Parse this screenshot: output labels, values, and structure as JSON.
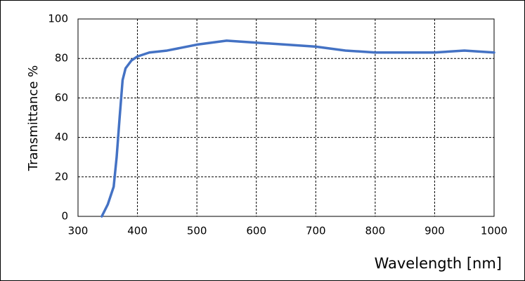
{
  "chart_data": {
    "type": "line",
    "x_label": "Wavelength [nm]",
    "y_label": "Transmittance  %",
    "x": [
      340,
      350,
      360,
      365,
      370,
      375,
      380,
      390,
      400,
      420,
      450,
      500,
      550,
      600,
      650,
      700,
      750,
      800,
      850,
      900,
      950,
      1000
    ],
    "series": [
      {
        "name": "Transmittance",
        "color": "#4472c4",
        "values": [
          0,
          6,
          15,
          30,
          50,
          69,
          75,
          79,
          81,
          83,
          84,
          87,
          89,
          88,
          87,
          86,
          84,
          83,
          83,
          83,
          84,
          83
        ]
      }
    ],
    "xlim": [
      300,
      1000
    ],
    "xticks": [
      300,
      400,
      500,
      600,
      700,
      800,
      900,
      1000
    ],
    "ylim": [
      0,
      100
    ],
    "yticks": [
      0,
      20,
      40,
      60,
      80,
      100
    ],
    "grid": true
  }
}
